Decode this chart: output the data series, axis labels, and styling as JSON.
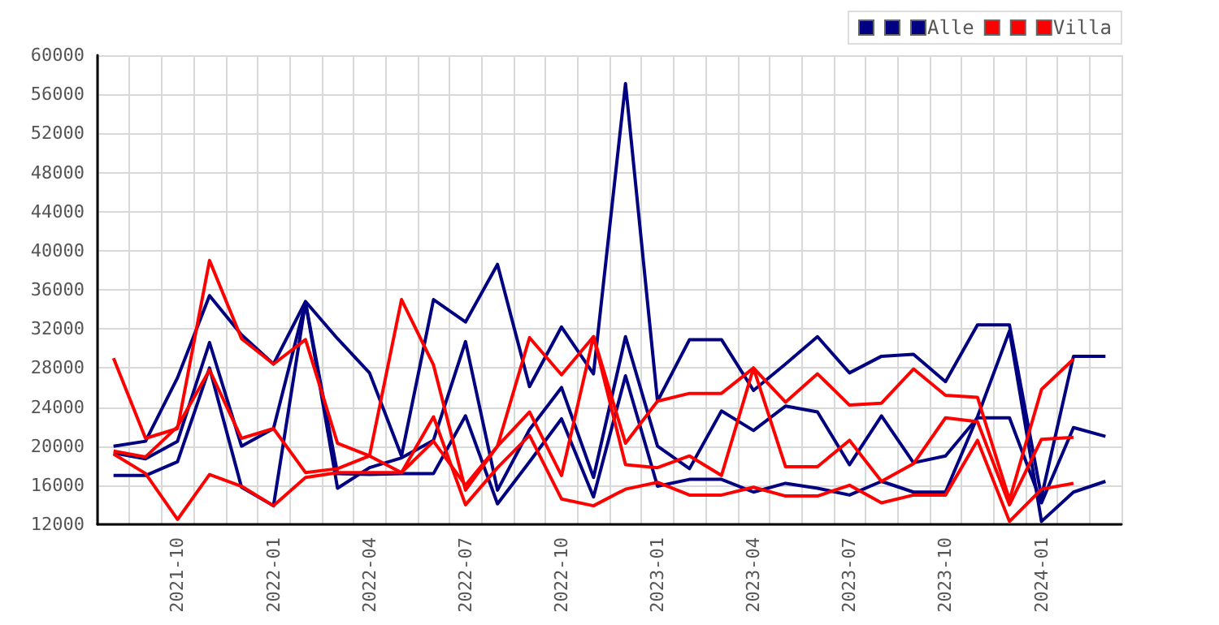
{
  "chart_data": {
    "type": "line",
    "categories": [
      null,
      null,
      "2021-10",
      null,
      null,
      "2022-01",
      null,
      null,
      "2022-04",
      null,
      null,
      "2022-07",
      null,
      null,
      "2022-10",
      null,
      null,
      "2023-01",
      null,
      null,
      "2023-04",
      null,
      null,
      "2023-07",
      null,
      null,
      "2023-10",
      null,
      null,
      "2024-01",
      null,
      null
    ],
    "series": [
      {
        "color": "#000080",
        "values": [
          20000,
          20500,
          27000,
          35400,
          31400,
          28400,
          34800,
          31000,
          27500,
          19000,
          35000,
          32700,
          38600,
          26100,
          32200,
          27400,
          57100,
          24600,
          30900,
          30900,
          25700,
          28400,
          31200,
          27500,
          29200,
          29400,
          26600,
          32400,
          32400,
          14800,
          29200,
          29200
        ]
      },
      {
        "color": "#000080",
        "values": [
          19300,
          18700,
          20500,
          30600,
          20000,
          21800,
          34700,
          15700,
          17800,
          18800,
          20600,
          30700,
          15500,
          21700,
          26000,
          16800,
          31200,
          20000,
          17700,
          23600,
          21600,
          24100,
          23500,
          18100,
          23100,
          18300,
          19000,
          22900,
          22900,
          14200,
          21900,
          21000
        ]
      },
      {
        "name": "Alle",
        "color": "#000080",
        "values": [
          17000,
          17000,
          18400,
          28000,
          15800,
          13900,
          34700,
          17200,
          17100,
          17200,
          17200,
          23100,
          14100,
          18400,
          22800,
          14800,
          27200,
          15900,
          16600,
          16600,
          15300,
          16200,
          15700,
          15000,
          16400,
          15300,
          15300,
          23000,
          31800,
          12300,
          15300,
          16400
        ]
      },
      {
        "color": "#ff0000",
        "values": [
          29000,
          20800,
          21800,
          39000,
          31000,
          28400,
          30900,
          20300,
          19000,
          35000,
          28300,
          15500,
          20000,
          31100,
          27300,
          31200,
          20300,
          24600,
          25400,
          25400,
          28000,
          24500,
          27400,
          24200,
          24400,
          27900,
          25200,
          25000,
          14500,
          25800,
          28900,
          null
        ]
      },
      {
        "color": "#ff0000",
        "values": [
          19500,
          18900,
          22000,
          27800,
          20800,
          21800,
          17300,
          17700,
          19000,
          17300,
          20500,
          16000,
          20000,
          23500,
          17000,
          31200,
          18100,
          17800,
          19000,
          17000,
          28000,
          17900,
          17900,
          20600,
          16400,
          18200,
          22900,
          22500,
          14000,
          20700,
          20900,
          null
        ]
      },
      {
        "name": "Villa",
        "color": "#ff0000",
        "values": [
          19200,
          17200,
          12500,
          17100,
          15900,
          13900,
          16800,
          17300,
          17300,
          17300,
          23000,
          14000,
          17800,
          21100,
          14600,
          13900,
          15600,
          16300,
          15000,
          15000,
          15800,
          14900,
          14900,
          16000,
          14200,
          15000,
          15000,
          20600,
          12300,
          15600,
          16200,
          null
        ]
      }
    ],
    "ylim": [
      12000,
      60000
    ],
    "yticks": [
      12000,
      16000,
      20000,
      24000,
      28000,
      32000,
      36000,
      40000,
      44000,
      48000,
      52000,
      56000,
      60000
    ],
    "grid": true,
    "legend": "top right",
    "marker": "none",
    "line_style": "solid"
  }
}
